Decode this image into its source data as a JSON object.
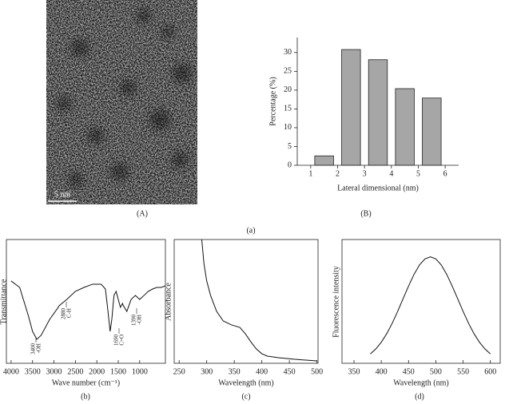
{
  "figure_label": "(a)",
  "image": {
    "scale_bar": "5 nm",
    "label": "(A)"
  },
  "chart_data": [
    {
      "type": "histogram",
      "label": "(B)",
      "y_label": "Percentage (%)",
      "x_label": "Lateral dimensional (nm)",
      "bins": [
        1,
        2,
        3,
        4,
        5,
        6
      ],
      "values": [
        2.5,
        30.8,
        28.1,
        20.4,
        17.9
      ],
      "color": "#a6a6a6",
      "xlim": [
        0.5,
        6.5
      ],
      "ylim": [
        0,
        34
      ],
      "xticks": [
        1,
        2,
        3,
        4,
        5,
        6
      ],
      "yticks": [
        0,
        5,
        10,
        15,
        20,
        25,
        30
      ]
    },
    {
      "type": "line",
      "label": "(b)",
      "y_label": "Transmittance",
      "x_label": "Wave number (cm⁻¹)",
      "x": [
        4000,
        3800,
        3600,
        3500,
        3400,
        3300,
        3100,
        2900,
        2880,
        2700,
        2500,
        2300,
        2100,
        1900,
        1800,
        1750,
        1690,
        1650,
        1600,
        1550,
        1500,
        1450,
        1400,
        1390,
        1300,
        1200,
        1100,
        1000,
        900,
        800,
        700,
        600,
        500,
        400
      ],
      "values": [
        66.5,
        61.3,
        38.7,
        25.8,
        19.4,
        22.6,
        35.5,
        45.2,
        46.5,
        51.6,
        58.1,
        61.3,
        63.9,
        63.9,
        60,
        45.2,
        25.8,
        35.5,
        54.8,
        58.1,
        51.6,
        45.2,
        48.4,
        47.1,
        41.9,
        51.6,
        54.8,
        51.6,
        54.8,
        58.1,
        60,
        61.3,
        61.3,
        62.6
      ],
      "xlim": [
        4110,
        400
      ],
      "ylim": [
        0,
        100
      ],
      "xticks": [
        4000,
        3500,
        3000,
        2500,
        2000,
        1500,
        1000
      ],
      "annotations": [
        {
          "lines": [
            "3400",
            "-OH"
          ]
        },
        {
          "lines": [
            "2880",
            "C-H"
          ]
        },
        {
          "lines": [
            "1690",
            "C=O"
          ]
        },
        {
          "lines": [
            "1390",
            "-OH"
          ]
        }
      ]
    },
    {
      "type": "line",
      "label": "(c)",
      "y_label": "Absorbance",
      "x_label": "Wavelength (nm)",
      "x": [
        291,
        295,
        300,
        307,
        318,
        330,
        345,
        360,
        370,
        380,
        390,
        400,
        410,
        430,
        460,
        500
      ],
      "values": [
        100,
        80.6,
        66.5,
        54.8,
        41.9,
        34.2,
        31,
        29,
        23.9,
        17.4,
        11.6,
        7.7,
        5.8,
        4.5,
        3.2,
        1.9
      ],
      "xlim": [
        241,
        502
      ],
      "ylim": [
        0,
        100
      ],
      "xticks": [
        250,
        300,
        350,
        400,
        450,
        500
      ]
    },
    {
      "type": "line",
      "label": "(d)",
      "y_label": "Fluorescence intensity",
      "x_label": "Wavelength (nm)",
      "x": [
        380,
        390,
        400,
        410,
        420,
        430,
        440,
        450,
        460,
        470,
        480,
        490,
        500,
        510,
        520,
        530,
        540,
        550,
        560,
        570,
        580,
        590,
        600
      ],
      "values": [
        7.6,
        11.6,
        17,
        23.9,
        32.3,
        41.9,
        52.2,
        62.4,
        71.8,
        79.4,
        84.3,
        86,
        84.3,
        79.4,
        71.8,
        62.4,
        52.2,
        41.9,
        32.3,
        23.9,
        17,
        11.6,
        7.6
      ],
      "xlim": [
        328,
        618
      ],
      "ylim": [
        0,
        100
      ],
      "xticks": [
        350,
        400,
        450,
        500,
        550,
        600
      ]
    }
  ]
}
